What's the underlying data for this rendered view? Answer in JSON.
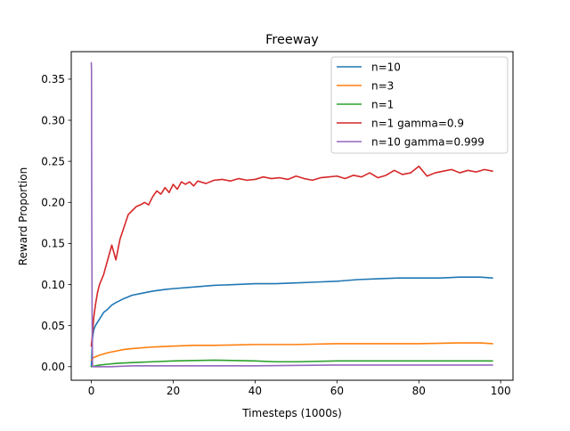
{
  "chart_data": {
    "type": "line",
    "title": "Freeway",
    "xlabel": "Timesteps (1000s)",
    "ylabel": "Reward Proportion",
    "xlim": [
      -4.9,
      103
    ],
    "ylim": [
      -0.0165,
      0.3835
    ],
    "xticks": [
      0,
      20,
      40,
      60,
      80,
      100
    ],
    "yticks": [
      0.0,
      0.05,
      0.1,
      0.15,
      0.2,
      0.25,
      0.3,
      0.35
    ],
    "grid": false,
    "legend_position": "top-right",
    "series": [
      {
        "name": "n=10",
        "color": "#1f77b4",
        "x": [
          0,
          0.3,
          0.6,
          1,
          2,
          3,
          4,
          5,
          6,
          8,
          10,
          12,
          15,
          18,
          20,
          25,
          30,
          35,
          40,
          45,
          50,
          55,
          60,
          65,
          70,
          75,
          80,
          85,
          90,
          95,
          98
        ],
        "y": [
          0.0,
          0.035,
          0.045,
          0.05,
          0.058,
          0.066,
          0.07,
          0.075,
          0.078,
          0.083,
          0.087,
          0.089,
          0.092,
          0.094,
          0.095,
          0.097,
          0.099,
          0.1,
          0.101,
          0.101,
          0.102,
          0.103,
          0.104,
          0.106,
          0.107,
          0.108,
          0.108,
          0.108,
          0.109,
          0.109,
          0.108
        ]
      },
      {
        "name": "n=3",
        "color": "#ff7f0e",
        "x": [
          0,
          0.5,
          1,
          2,
          4,
          6,
          8,
          10,
          15,
          20,
          25,
          30,
          40,
          50,
          60,
          70,
          80,
          90,
          95,
          98
        ],
        "y": [
          0.008,
          0.011,
          0.012,
          0.014,
          0.017,
          0.019,
          0.021,
          0.022,
          0.024,
          0.025,
          0.026,
          0.026,
          0.027,
          0.027,
          0.028,
          0.028,
          0.028,
          0.029,
          0.029,
          0.028
        ]
      },
      {
        "name": "n=1",
        "color": "#2ca02c",
        "x": [
          0,
          1,
          2,
          4,
          6,
          10,
          15,
          20,
          30,
          40,
          45,
          50,
          60,
          70,
          80,
          90,
          98
        ],
        "y": [
          0.0,
          0.001,
          0.002,
          0.003,
          0.004,
          0.005,
          0.006,
          0.007,
          0.008,
          0.007,
          0.006,
          0.006,
          0.007,
          0.007,
          0.007,
          0.007,
          0.007
        ]
      },
      {
        "name": "n=1 gamma=0.9",
        "color": "#d62728",
        "x": [
          0,
          0.3,
          0.6,
          1,
          1.5,
          2,
          3,
          4,
          5,
          6,
          7,
          8,
          9,
          10,
          11,
          12,
          13,
          14,
          15,
          16,
          17,
          18,
          19,
          20,
          21,
          22,
          23,
          24,
          25,
          26,
          28,
          30,
          32,
          34,
          36,
          38,
          40,
          42,
          44,
          46,
          48,
          50,
          52,
          54,
          56,
          58,
          60,
          62,
          64,
          66,
          68,
          70,
          72,
          74,
          76,
          78,
          80,
          82,
          84,
          86,
          88,
          90,
          92,
          94,
          96,
          98
        ],
        "y": [
          0.025,
          0.04,
          0.06,
          0.075,
          0.09,
          0.1,
          0.112,
          0.13,
          0.148,
          0.13,
          0.155,
          0.17,
          0.185,
          0.19,
          0.195,
          0.197,
          0.2,
          0.197,
          0.207,
          0.214,
          0.21,
          0.218,
          0.212,
          0.222,
          0.216,
          0.225,
          0.222,
          0.225,
          0.22,
          0.226,
          0.223,
          0.227,
          0.228,
          0.226,
          0.229,
          0.227,
          0.228,
          0.231,
          0.229,
          0.23,
          0.228,
          0.232,
          0.229,
          0.227,
          0.23,
          0.231,
          0.232,
          0.229,
          0.233,
          0.231,
          0.236,
          0.23,
          0.233,
          0.239,
          0.234,
          0.236,
          0.244,
          0.232,
          0.236,
          0.238,
          0.24,
          0.236,
          0.239,
          0.237,
          0.24,
          0.238
        ]
      },
      {
        "name": "n=10 gamma=0.999",
        "color": "#9467bd",
        "x": [
          0,
          0.05,
          0.1,
          0.2,
          0.3,
          0.5,
          1,
          2,
          5,
          10,
          20,
          40,
          60,
          80,
          98
        ],
        "y": [
          0.37,
          0.36,
          0.2,
          0.06,
          0.0,
          0.0,
          0.0,
          0.0,
          0.0,
          0.001,
          0.001,
          0.001,
          0.002,
          0.002,
          0.002
        ]
      }
    ]
  }
}
